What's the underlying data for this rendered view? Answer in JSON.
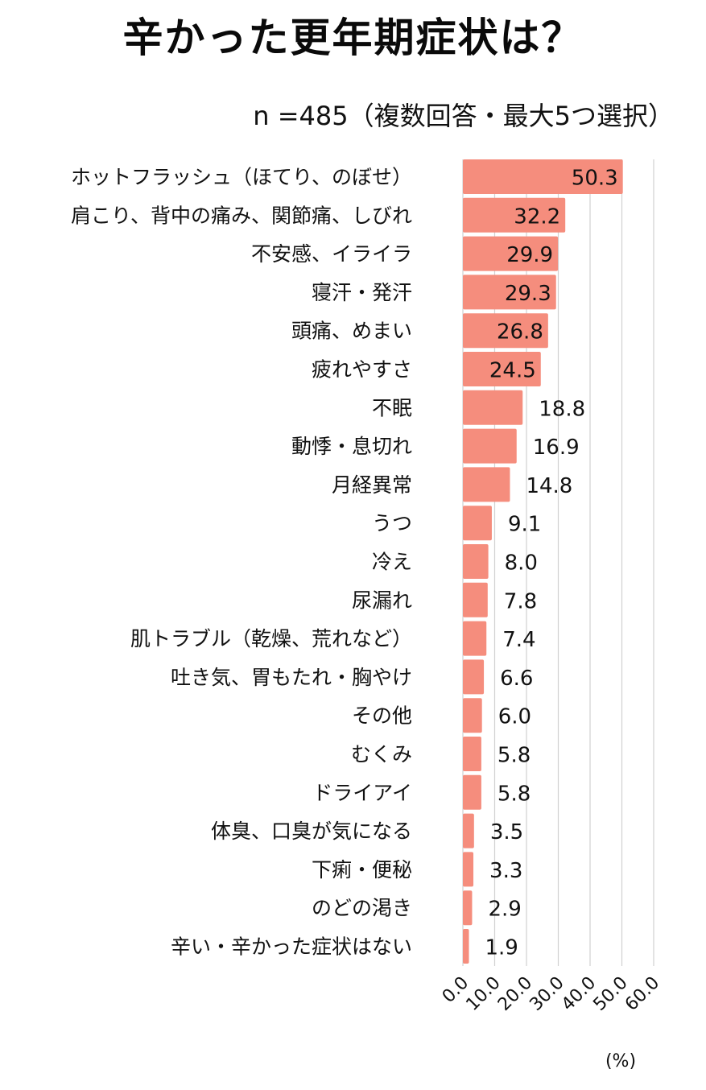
{
  "header": {
    "title": "辛かった更年期症状は？",
    "subtitle": "n =485（複数回答・最大5つ選択）"
  },
  "chart_data": {
    "type": "bar",
    "orientation": "horizontal",
    "title": "辛かった更年期症状は？",
    "subtitle": "n =485（複数回答・最大5つ選択）",
    "unit_label": "(%)",
    "categories": [
      "ホットフラッシュ（ほてり、のぼせ）",
      "肩こり、背中の痛み、関節痛、しびれ",
      "不安感、イライラ",
      "寝汗・発汗",
      "頭痛、めまい",
      "疲れやすさ",
      "不眠",
      "動悸・息切れ",
      "月経異常",
      "うつ",
      "冷え",
      "尿漏れ",
      "肌トラブル（乾燥、荒れなど）",
      "吐き気、胃もたれ・胸やけ",
      "その他",
      "むくみ",
      "ドライアイ",
      "体臭、口臭が気になる",
      "下痢・便秘",
      "のどの渇き",
      "辛い・辛かった症状はない"
    ],
    "values": [
      50.3,
      32.2,
      29.9,
      29.3,
      26.8,
      24.5,
      18.8,
      16.9,
      14.8,
      9.1,
      8.0,
      7.8,
      7.4,
      6.6,
      6.0,
      5.8,
      5.8,
      3.5,
      3.3,
      2.9,
      1.9
    ],
    "value_labels": [
      "50.3",
      "32.2",
      "29.9",
      "29.3",
      "26.8",
      "24.5",
      "18.8",
      "16.9",
      "14.8",
      "9.1",
      "8.0",
      "7.8",
      "7.4",
      "6.6",
      "6.0",
      "5.8",
      "5.8",
      "3.5",
      "3.3",
      "2.9",
      "1.9"
    ],
    "xlim": [
      0,
      60
    ],
    "xticks": [
      "0.0",
      "10.0",
      "20.0",
      "30.0",
      "40.0",
      "50.0",
      "60.0"
    ],
    "grid": true,
    "colors": {
      "bar": "#f58d7d",
      "grid": "#d0d0d0",
      "text": "#111111"
    }
  }
}
